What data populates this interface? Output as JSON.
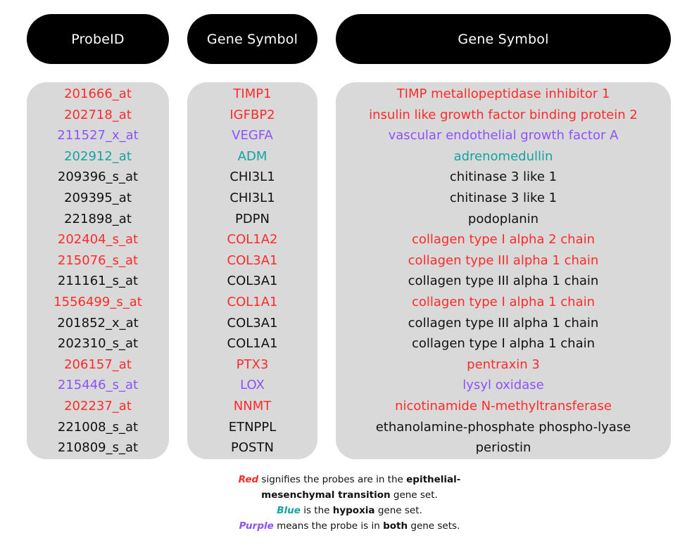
{
  "headers": {
    "probe": "ProbeID",
    "symbol": "Gene Symbol",
    "name": "Gene Symbol"
  },
  "colors": {
    "red": "#ff2a2a",
    "blue": "#14a3a0",
    "purple": "#8c52ff",
    "black": "#111111",
    "panel": "#d9d9d9",
    "header": "#000000"
  },
  "rows": [
    {
      "probe": "201666_at",
      "symbol": "TIMP1",
      "name": "TIMP metallopeptidase inhibitor 1",
      "set": "red"
    },
    {
      "probe": "202718_at",
      "symbol": "IGFBP2",
      "name": "insulin like growth factor binding protein 2",
      "set": "red"
    },
    {
      "probe": "211527_x_at",
      "symbol": "VEGFA",
      "name": "vascular endothelial growth factor A",
      "set": "purple"
    },
    {
      "probe": "202912_at",
      "symbol": "ADM",
      "name": "adrenomedullin",
      "set": "blue"
    },
    {
      "probe": "209396_s_at",
      "symbol": "CHI3L1",
      "name": "chitinase 3 like 1",
      "set": "black"
    },
    {
      "probe": "209395_at",
      "symbol": "CHI3L1",
      "name": "chitinase 3 like 1",
      "set": "black"
    },
    {
      "probe": "221898_at",
      "symbol": "PDPN",
      "name": "podoplanin",
      "set": "black"
    },
    {
      "probe": "202404_s_at",
      "symbol": "COL1A2",
      "name": "collagen type I alpha 2 chain",
      "set": "red"
    },
    {
      "probe": "215076_s_at",
      "symbol": "COL3A1",
      "name": "collagen type III alpha 1 chain",
      "set": "red"
    },
    {
      "probe": "211161_s_at",
      "symbol": "COL3A1",
      "name": "collagen type III alpha 1 chain",
      "set": "black"
    },
    {
      "probe": "1556499_s_at",
      "symbol": "COL1A1",
      "name": "collagen type I alpha 1 chain",
      "set": "red"
    },
    {
      "probe": "201852_x_at",
      "symbol": "COL3A1",
      "name": "collagen type III alpha 1 chain",
      "set": "black"
    },
    {
      "probe": "202310_s_at",
      "symbol": "COL1A1",
      "name": "collagen type I alpha 1 chain",
      "set": "black"
    },
    {
      "probe": "206157_at",
      "symbol": "PTX3",
      "name": "pentraxin 3",
      "set": "red"
    },
    {
      "probe": "215446_s_at",
      "symbol": "LOX",
      "name": "lysyl oxidase",
      "set": "purple"
    },
    {
      "probe": "202237_at",
      "symbol": "NNMT",
      "name": "nicotinamide N-methyltransferase",
      "set": "red"
    },
    {
      "probe": "221008_s_at",
      "symbol": "ETNPPL",
      "name": "ethanolamine-phosphate phospho-lyase",
      "set": "black"
    },
    {
      "probe": "210809_s_at",
      "symbol": "POSTN",
      "name": "periostin",
      "set": "black"
    }
  ],
  "legend": {
    "red_word": "Red",
    "red_text_1": " signifies the probes are in the ",
    "red_bold": "epithelial-",
    "red_bold_2": "mesenchymal transition",
    "red_text_2": " gene set.",
    "blue_word": "Blue",
    "blue_text_1": " is the ",
    "blue_bold": "hypoxia",
    "blue_text_2": " gene set.",
    "purple_word": "Purple",
    "purple_text_1": " means the probe is in ",
    "purple_bold": "both",
    "purple_text_2": " gene sets."
  }
}
